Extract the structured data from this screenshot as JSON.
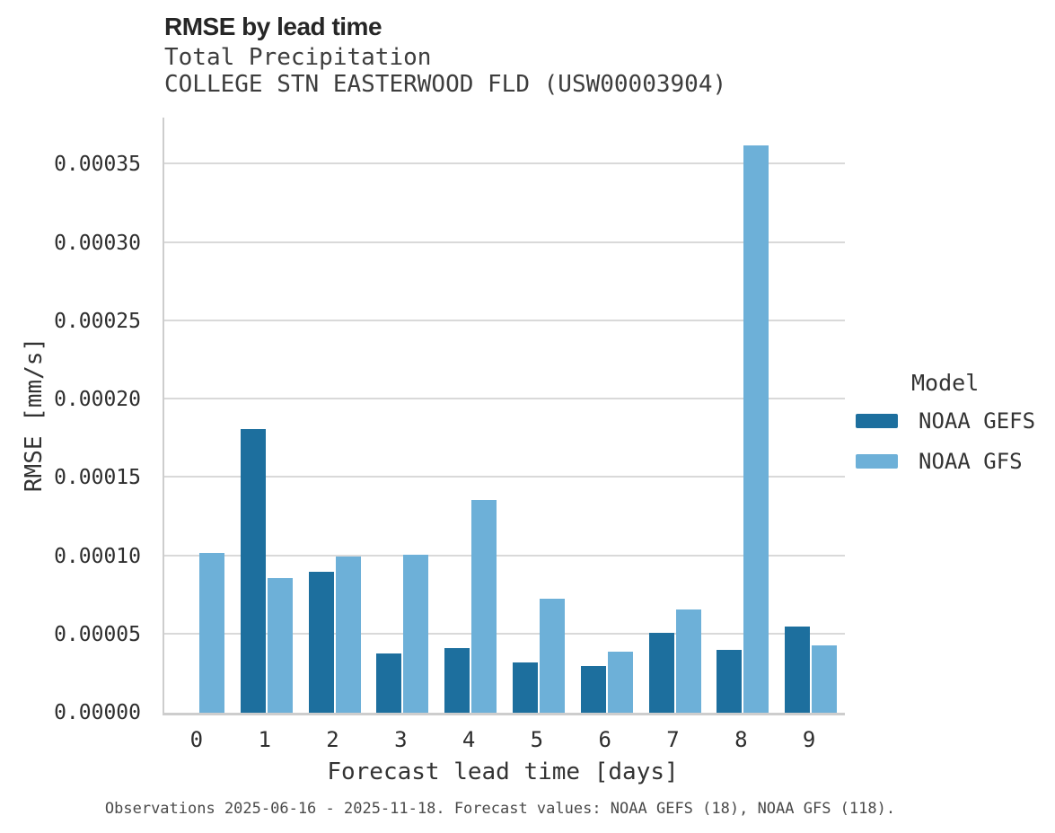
{
  "header": {
    "title": "RMSE by lead time",
    "subtitle_line1": "Total Precipitation",
    "subtitle_line2": "COLLEGE STN EASTERWOOD FLD (USW00003904)"
  },
  "chart_data": {
    "type": "bar",
    "title": "RMSE by lead time",
    "subtitle": [
      "Total Precipitation",
      "COLLEGE STN EASTERWOOD FLD (USW00003904)"
    ],
    "xlabel": "Forecast lead time [days]",
    "ylabel": "RMSE [mm/s]",
    "categories": [
      "0",
      "1",
      "2",
      "3",
      "4",
      "5",
      "6",
      "7",
      "8",
      "9"
    ],
    "series": [
      {
        "name": "NOAA GEFS",
        "color": "#1d6f9e",
        "values": [
          0,
          0.000181,
          9e-05,
          3.8e-05,
          4.1e-05,
          3.2e-05,
          3e-05,
          5.1e-05,
          4e-05,
          5.5e-05
        ]
      },
      {
        "name": "NOAA GFS",
        "color": "#6db0d8",
        "values": [
          0.000102,
          8.6e-05,
          0.0001,
          0.000101,
          0.000136,
          7.3e-05,
          3.9e-05,
          6.6e-05,
          0.000362,
          4.3e-05
        ]
      }
    ],
    "ylim": [
      0,
      0.00038
    ],
    "yticks": [
      {
        "v": 0.0,
        "label": "0.00000"
      },
      {
        "v": 5e-05,
        "label": "0.00005"
      },
      {
        "v": 0.0001,
        "label": "0.00010"
      },
      {
        "v": 0.00015,
        "label": "0.00015"
      },
      {
        "v": 0.0002,
        "label": "0.00020"
      },
      {
        "v": 0.00025,
        "label": "0.00025"
      },
      {
        "v": 0.0003,
        "label": "0.00030"
      },
      {
        "v": 0.00035,
        "label": "0.00035"
      }
    ],
    "grid": "horizontal",
    "legend": {
      "title": "Model",
      "position": "center-right"
    }
  },
  "footer": {
    "caption": "Observations 2025-06-16 - 2025-11-18. Forecast values: NOAA GEFS (18), NOAA GFS (118)."
  }
}
